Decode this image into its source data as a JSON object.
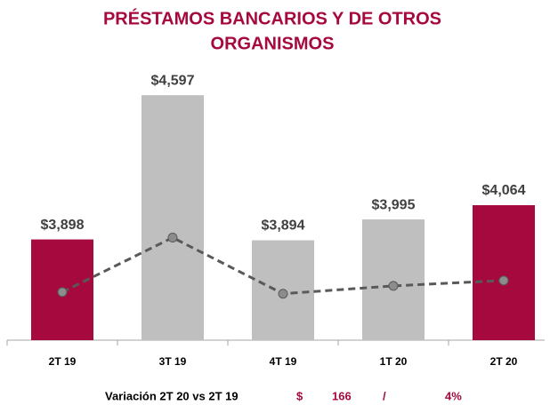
{
  "chart_data": {
    "type": "bar",
    "title": [
      "PRÉSTAMOS BANCARIOS Y DE OTROS",
      "ORGANISMOS"
    ],
    "categories": [
      "2T 19",
      "3T 19",
      "4T 19",
      "1T 20",
      "2T 20"
    ],
    "values": [
      3898,
      4597,
      3894,
      3995,
      4064
    ],
    "value_labels": [
      "$3,898",
      "$4,597",
      "$3,894",
      "$3,995",
      "$4,064"
    ],
    "colors": [
      "#a6093d",
      "#bfbfbf",
      "#bfbfbf",
      "#bfbfbf",
      "#a6093d"
    ],
    "ylim": [
      3410,
      4800
    ],
    "line": {
      "values": [
        3643,
        3907,
        3635,
        3673,
        3699
      ],
      "color": "#595959",
      "marker_color": "#8c8c8c",
      "dashed": true
    },
    "footer": {
      "label": "Variación 2T 20 vs 2T 19",
      "currency": "$",
      "amount": "166",
      "separator": "/",
      "percent": "4%"
    }
  }
}
